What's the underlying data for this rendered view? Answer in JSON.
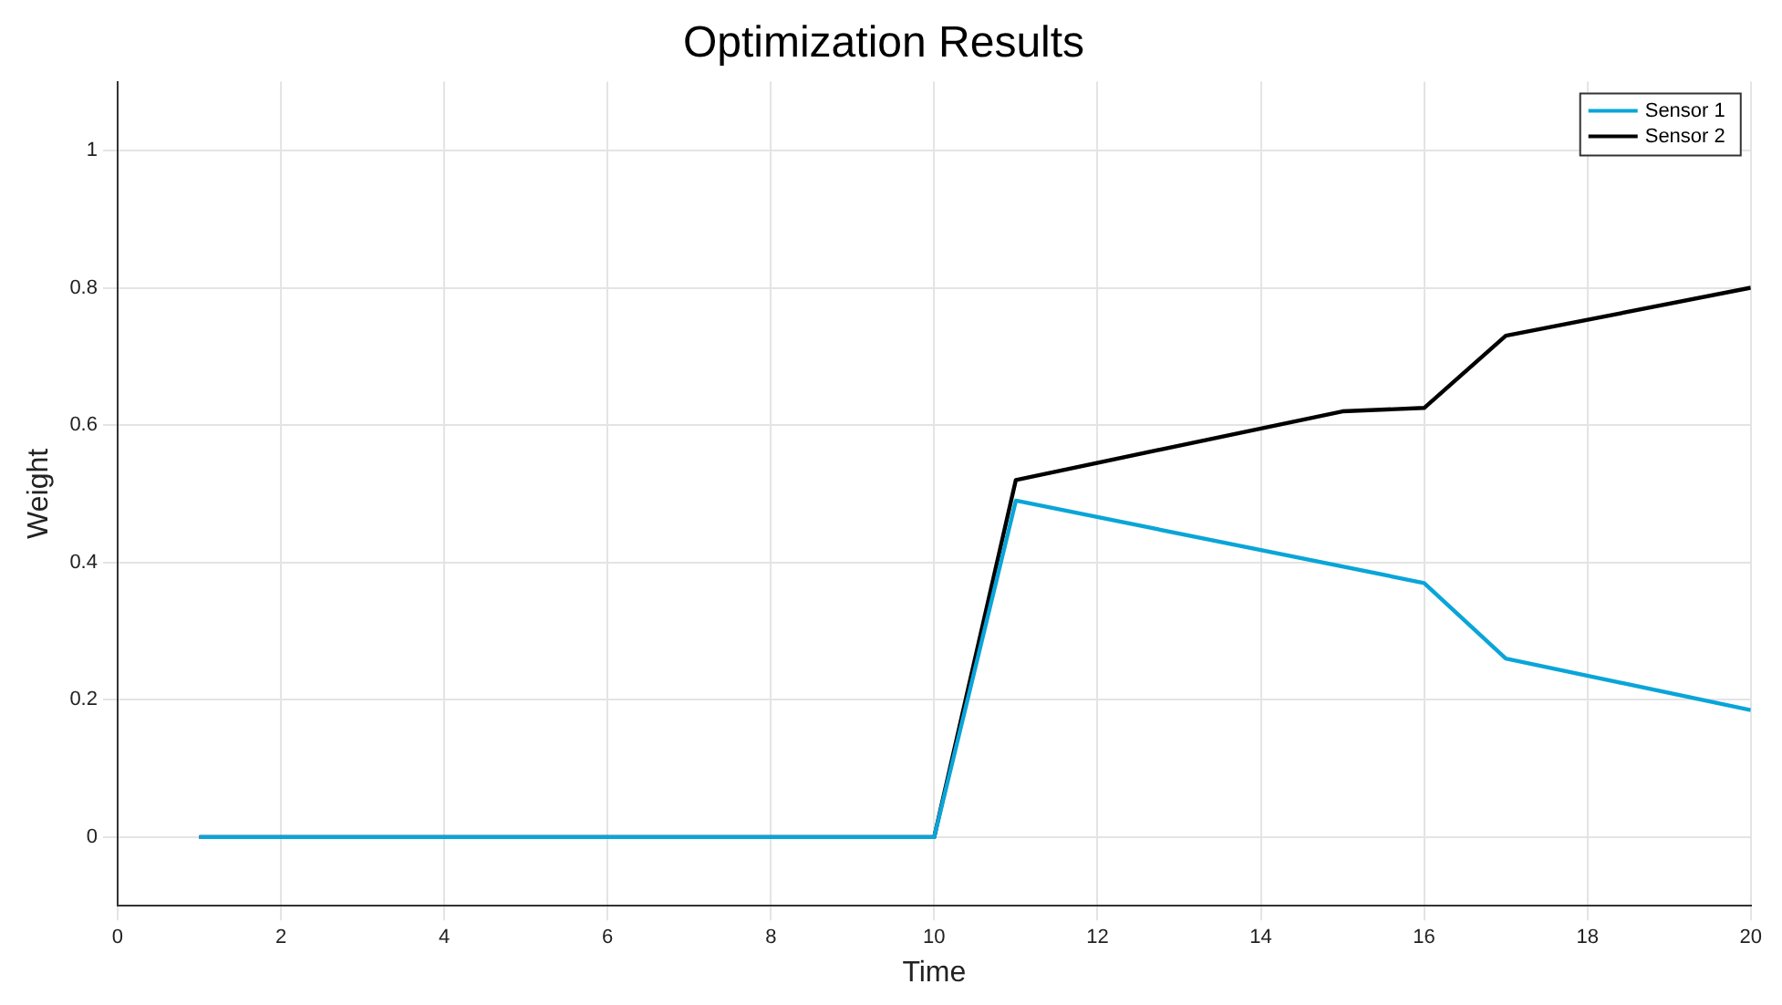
{
  "chart_data": {
    "type": "line",
    "title": "Optimization Results",
    "xlabel": "Time",
    "ylabel": "Weight",
    "xlim": [
      0,
      20
    ],
    "xticks": [
      0,
      2,
      4,
      6,
      8,
      10,
      12,
      14,
      16,
      18,
      20
    ],
    "ylim": [
      -0.1,
      1.1
    ],
    "yticks": [
      0,
      0.2,
      0.4,
      0.6,
      0.8,
      1
    ],
    "grid": true,
    "legend": "top right",
    "marker": "none",
    "line_style": "solid",
    "series": [
      {
        "name": "Sensor 1",
        "color": "#0aa5d8",
        "x": [
          1,
          10,
          11,
          16,
          17,
          20
        ],
        "values": [
          0,
          0,
          0.49,
          0.37,
          0.26,
          0.185
        ]
      },
      {
        "name": "Sensor 2",
        "color": "#000000",
        "x": [
          1,
          10,
          11,
          15,
          16,
          17,
          20
        ],
        "values": [
          0,
          0,
          0.52,
          0.62,
          0.625,
          0.73,
          0.8
        ]
      }
    ]
  }
}
